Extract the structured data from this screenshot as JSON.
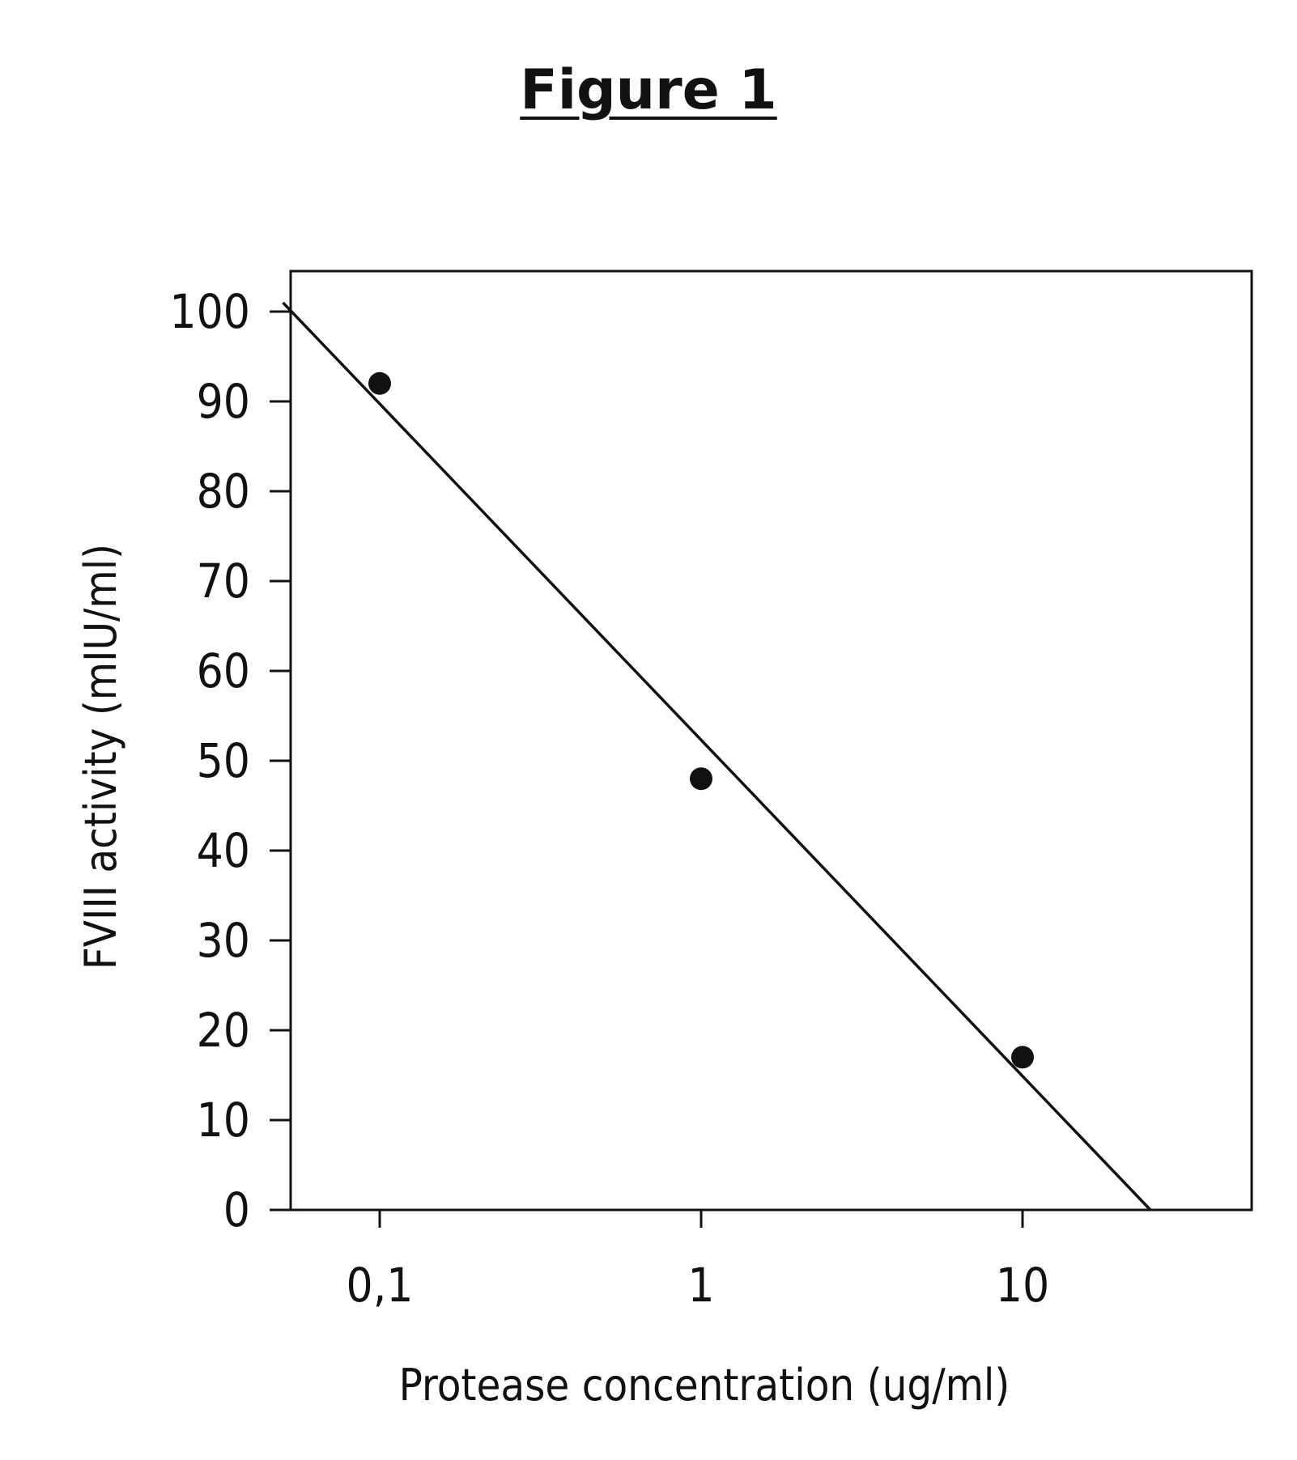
{
  "figure": {
    "title": "Figure 1"
  },
  "chart_data": {
    "type": "scatter",
    "xlabel": "Protease concentration (ug/ml)",
    "ylabel": "FVIII activity (mIU/ml)",
    "x_scale": "log",
    "xlim": [
      0.05,
      70
    ],
    "ylim": [
      0,
      105
    ],
    "x_ticks": [
      0.1,
      1,
      10
    ],
    "x_tick_labels": [
      "0,1",
      "1",
      "10"
    ],
    "y_ticks": [
      0,
      10,
      20,
      30,
      40,
      50,
      60,
      70,
      80,
      90,
      100
    ],
    "y_tick_labels": [
      "0",
      "10",
      "20",
      "30",
      "40",
      "50",
      "60",
      "70",
      "80",
      "90",
      "100"
    ],
    "series": [
      {
        "points": [
          {
            "x": 0.1,
            "y": 92
          },
          {
            "x": 1,
            "y": 48
          },
          {
            "x": 10,
            "y": 17
          }
        ]
      }
    ],
    "trendline": {
      "start": {
        "x": 0.05,
        "y": 101
      },
      "end": {
        "x": 25,
        "y": 0
      }
    },
    "grid": false,
    "legend": "none"
  },
  "colors": {
    "ink": "#111111",
    "background": "#ffffff"
  }
}
